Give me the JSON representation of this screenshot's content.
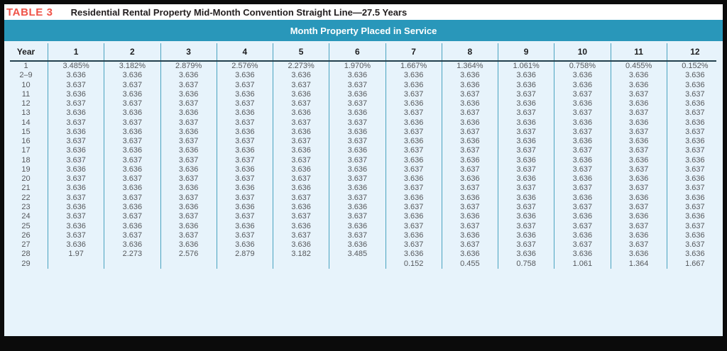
{
  "table": {
    "label": "TABLE 3",
    "title": "Residential Rental Property Mid-Month Convention Straight Line—27.5 Years",
    "band_header": "Month Property Placed in Service",
    "year_header": "Year",
    "month_headers": [
      "1",
      "2",
      "3",
      "4",
      "5",
      "6",
      "7",
      "8",
      "9",
      "10",
      "11",
      "12"
    ],
    "rows": [
      {
        "year": "1",
        "values": [
          "3.485%",
          "3.182%",
          "2.879%",
          "2.576%",
          "2.273%",
          "1.970%",
          "1.667%",
          "1.364%",
          "1.061%",
          "0.758%",
          "0.455%",
          "0.152%"
        ]
      },
      {
        "year": "2–9",
        "values": [
          "3.636",
          "3.636",
          "3.636",
          "3.636",
          "3.636",
          "3.636",
          "3.636",
          "3.636",
          "3.636",
          "3.636",
          "3.636",
          "3.636"
        ]
      },
      {
        "year": "10",
        "values": [
          "3.637",
          "3.637",
          "3.637",
          "3.637",
          "3.637",
          "3.637",
          "3.636",
          "3.636",
          "3.636",
          "3.636",
          "3.636",
          "3.636"
        ]
      },
      {
        "year": "11",
        "values": [
          "3.636",
          "3.636",
          "3.636",
          "3.636",
          "3.636",
          "3.636",
          "3.637",
          "3.637",
          "3.637",
          "3.637",
          "3.637",
          "3.637"
        ]
      },
      {
        "year": "12",
        "values": [
          "3.637",
          "3.637",
          "3.637",
          "3.637",
          "3.637",
          "3.637",
          "3.636",
          "3.636",
          "3.636",
          "3.636",
          "3.636",
          "3.636"
        ]
      },
      {
        "year": "13",
        "values": [
          "3.636",
          "3.636",
          "3.636",
          "3.636",
          "3.636",
          "3.636",
          "3.637",
          "3.637",
          "3.637",
          "3.637",
          "3.637",
          "3.637"
        ]
      },
      {
        "year": "14",
        "values": [
          "3.637",
          "3.637",
          "3.637",
          "3.637",
          "3.637",
          "3.637",
          "3.636",
          "3.636",
          "3.636",
          "3.636",
          "3.636",
          "3.636"
        ]
      },
      {
        "year": "15",
        "values": [
          "3.636",
          "3.636",
          "3.636",
          "3.636",
          "3.636",
          "3.636",
          "3.637",
          "3.637",
          "3.637",
          "3.637",
          "3.637",
          "3.637"
        ]
      },
      {
        "year": "16",
        "values": [
          "3.637",
          "3.637",
          "3.637",
          "3.637",
          "3.637",
          "3.637",
          "3.636",
          "3.636",
          "3.636",
          "3.636",
          "3.636",
          "3.636"
        ]
      },
      {
        "year": "17",
        "values": [
          "3.636",
          "3.636",
          "3.636",
          "3.636",
          "3.636",
          "3.636",
          "3.637",
          "3.637",
          "3.637",
          "3.637",
          "3.637",
          "3.637"
        ]
      },
      {
        "year": "18",
        "values": [
          "3.637",
          "3.637",
          "3.637",
          "3.637",
          "3.637",
          "3.637",
          "3.636",
          "3.636",
          "3.636",
          "3.636",
          "3.636",
          "3.636"
        ]
      },
      {
        "year": "19",
        "values": [
          "3.636",
          "3.636",
          "3.636",
          "3.636",
          "3.636",
          "3.636",
          "3.637",
          "3.637",
          "3.637",
          "3.637",
          "3.637",
          "3.637"
        ]
      },
      {
        "year": "20",
        "values": [
          "3.637",
          "3.637",
          "3.637",
          "3.637",
          "3.637",
          "3.637",
          "3.636",
          "3.636",
          "3.636",
          "3.636",
          "3.636",
          "3.636"
        ]
      },
      {
        "year": "21",
        "values": [
          "3.636",
          "3.636",
          "3.636",
          "3.636",
          "3.636",
          "3.636",
          "3.637",
          "3.637",
          "3.637",
          "3.637",
          "3.637",
          "3.637"
        ]
      },
      {
        "year": "22",
        "values": [
          "3.637",
          "3.637",
          "3.637",
          "3.637",
          "3.637",
          "3.637",
          "3.636",
          "3.636",
          "3.636",
          "3.636",
          "3.636",
          "3.636"
        ]
      },
      {
        "year": "23",
        "values": [
          "3.636",
          "3.636",
          "3.636",
          "3.636",
          "3.636",
          "3.636",
          "3.637",
          "3.637",
          "3.637",
          "3.637",
          "3.637",
          "3.637"
        ]
      },
      {
        "year": "24",
        "values": [
          "3.637",
          "3.637",
          "3.637",
          "3.637",
          "3.637",
          "3.637",
          "3.636",
          "3.636",
          "3.636",
          "3.636",
          "3.636",
          "3.636"
        ]
      },
      {
        "year": "25",
        "values": [
          "3.636",
          "3.636",
          "3.636",
          "3.636",
          "3.636",
          "3.636",
          "3.637",
          "3.637",
          "3.637",
          "3.637",
          "3.637",
          "3.637"
        ]
      },
      {
        "year": "26",
        "values": [
          "3.637",
          "3.637",
          "3.637",
          "3.637",
          "3.637",
          "3.637",
          "3.636",
          "3.636",
          "3.636",
          "3.636",
          "3.636",
          "3.636"
        ]
      },
      {
        "year": "27",
        "values": [
          "3.636",
          "3.636",
          "3.636",
          "3.636",
          "3.636",
          "3.636",
          "3.637",
          "3.637",
          "3.637",
          "3.637",
          "3.637",
          "3.637"
        ]
      },
      {
        "year": "28",
        "values": [
          "1.97",
          "2.273",
          "2.576",
          "2.879",
          "3.182",
          "3.485",
          "3.636",
          "3.636",
          "3.636",
          "3.636",
          "3.636",
          "3.636"
        ]
      },
      {
        "year": "29",
        "values": [
          "",
          "",
          "",
          "",
          "",
          "",
          "0.152",
          "0.455",
          "0.758",
          "1.061",
          "1.364",
          "1.667"
        ]
      }
    ]
  },
  "colors": {
    "accent_red": "#ef5348",
    "band_teal": "#2997ba",
    "table_bg": "#e7f3fb",
    "separator_teal": "#4aa3c0",
    "header_rule": "#24404e",
    "data_text": "#56585c",
    "page_frame": "#0b0b0b"
  }
}
